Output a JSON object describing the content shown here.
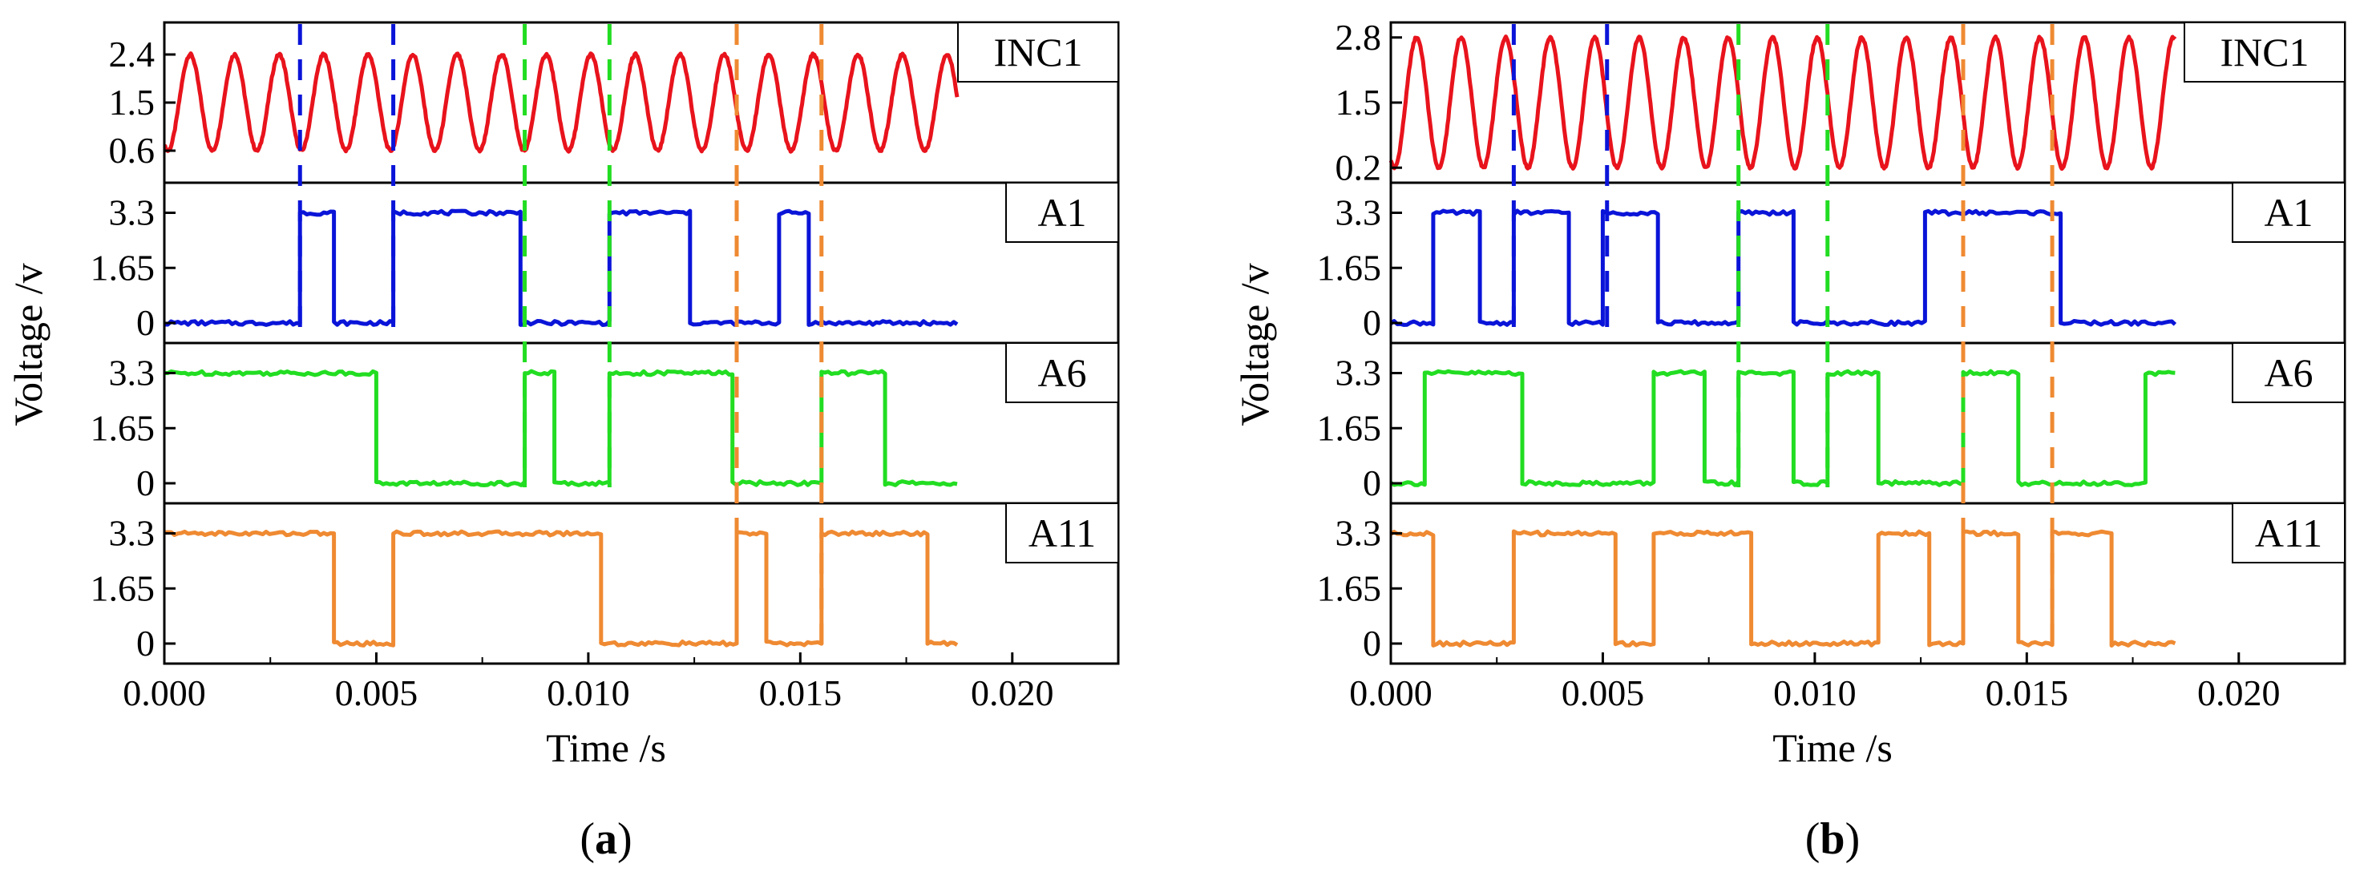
{
  "figure": {
    "xlabel": "Time /s",
    "ylabel": "Voltage /v",
    "xlim": [
      0,
      0.0225
    ],
    "xticks": [
      "0.000",
      "0.005",
      "0.010",
      "0.015",
      "0.020"
    ],
    "colors": {
      "INC1": "#e8131c",
      "A1": "#0a14d8",
      "A6": "#22dd22",
      "A11": "#ef8a32"
    }
  },
  "chart_data": [
    {
      "type": "line",
      "title": "(a)",
      "caption": "a",
      "xlabel": "Time /s",
      "ylabel": "Voltage /v",
      "xlim": [
        0,
        0.0225
      ],
      "x_tick_labels": [
        "0.000",
        "0.005",
        "0.010",
        "0.015",
        "0.020"
      ],
      "panels": [
        {
          "name": "INC1",
          "kind": "sine",
          "color": "#e8131c",
          "ylim": [
            0.0,
            3.0
          ],
          "y_tick_labels": [
            "2.4",
            "1.5",
            "0.6"
          ],
          "y_tick_values": [
            2.4,
            1.5,
            0.6
          ],
          "min": 0.6,
          "max": 2.4,
          "period": 0.00105,
          "t_start": 0.0,
          "t_end": 0.0187
        },
        {
          "name": "A1",
          "kind": "square",
          "color": "#0a14d8",
          "ylim": [
            -0.6,
            4.2
          ],
          "y_tick_labels": [
            "3.3",
            "1.65",
            "0"
          ],
          "y_tick_values": [
            3.3,
            1.65,
            0
          ],
          "t_start": 0.0,
          "t_end": 0.0187,
          "initial": 0,
          "transitions": [
            0.0032,
            0.004,
            0.0054,
            0.0084,
            0.0105,
            0.0124,
            0.0145,
            0.0152
          ]
        },
        {
          "name": "A6",
          "kind": "square",
          "color": "#22dd22",
          "ylim": [
            -0.6,
            4.2
          ],
          "y_tick_labels": [
            "3.3",
            "1.65",
            "0"
          ],
          "y_tick_values": [
            3.3,
            1.65,
            0
          ],
          "t_start": 0.0,
          "t_end": 0.0187,
          "initial": 1,
          "transitions": [
            0.005,
            0.0085,
            0.0092,
            0.0105,
            0.0134,
            0.0155,
            0.017
          ]
        },
        {
          "name": "A11",
          "kind": "square",
          "color": "#ef8a32",
          "ylim": [
            -0.6,
            4.2
          ],
          "y_tick_labels": [
            "3.3",
            "1.65",
            "0"
          ],
          "y_tick_values": [
            3.3,
            1.65,
            0
          ],
          "t_start": 0.0,
          "t_end": 0.0187,
          "initial": 1,
          "transitions": [
            0.004,
            0.0054,
            0.0103,
            0.0135,
            0.0142,
            0.0155,
            0.018
          ]
        }
      ],
      "markers": [
        {
          "t": 0.0032,
          "color": "#0a14d8",
          "from": "INC1",
          "to": "A1"
        },
        {
          "t": 0.0054,
          "color": "#0a14d8",
          "from": "INC1",
          "to": "A1"
        },
        {
          "t": 0.0085,
          "color": "#22dd22",
          "from": "INC1",
          "to": "A6"
        },
        {
          "t": 0.0105,
          "color": "#22dd22",
          "from": "INC1",
          "to": "A6"
        },
        {
          "t": 0.0135,
          "color": "#ef8a32",
          "from": "INC1",
          "to": "A11"
        },
        {
          "t": 0.0155,
          "color": "#ef8a32",
          "from": "INC1",
          "to": "A11"
        }
      ]
    },
    {
      "type": "line",
      "title": "(b)",
      "caption": "b",
      "xlabel": "Time /s",
      "ylabel": "Voltage /v",
      "xlim": [
        0,
        0.0225
      ],
      "x_tick_labels": [
        "0.000",
        "0.005",
        "0.010",
        "0.015",
        "0.020"
      ],
      "panels": [
        {
          "name": "INC1",
          "kind": "sine",
          "color": "#e8131c",
          "ylim": [
            -0.1,
            3.1
          ],
          "y_tick_labels": [
            "2.8",
            "1.5",
            "0.2"
          ],
          "y_tick_values": [
            2.8,
            1.5,
            0.2
          ],
          "min": 0.2,
          "max": 2.8,
          "period": 0.00105,
          "t_start": 0.0,
          "t_end": 0.0185
        },
        {
          "name": "A1",
          "kind": "square",
          "color": "#0a14d8",
          "ylim": [
            -0.6,
            4.2
          ],
          "y_tick_labels": [
            "3.3",
            "1.65",
            "0"
          ],
          "y_tick_values": [
            3.3,
            1.65,
            0
          ],
          "t_start": 0.0,
          "t_end": 0.0185,
          "initial": 0,
          "transitions": [
            0.001,
            0.0021,
            0.0029,
            0.0042,
            0.005,
            0.0063,
            0.0082,
            0.0095,
            0.0126,
            0.0158
          ]
        },
        {
          "name": "A6",
          "kind": "square",
          "color": "#22dd22",
          "ylim": [
            -0.6,
            4.2
          ],
          "y_tick_labels": [
            "3.3",
            "1.65",
            "0"
          ],
          "y_tick_values": [
            3.3,
            1.65,
            0
          ],
          "t_start": 0.0,
          "t_end": 0.0185,
          "initial": 0,
          "transitions": [
            0.0008,
            0.0031,
            0.0062,
            0.0074,
            0.0082,
            0.0095,
            0.0103,
            0.0115,
            0.0135,
            0.0148,
            0.0178
          ]
        },
        {
          "name": "A11",
          "kind": "square",
          "color": "#ef8a32",
          "ylim": [
            -0.6,
            4.2
          ],
          "y_tick_labels": [
            "3.3",
            "1.65",
            "0"
          ],
          "y_tick_values": [
            3.3,
            1.65,
            0
          ],
          "t_start": 0.0,
          "t_end": 0.0185,
          "initial": 1,
          "transitions": [
            0.001,
            0.0029,
            0.0053,
            0.0062,
            0.0085,
            0.0115,
            0.0127,
            0.0135,
            0.0148,
            0.0156,
            0.017
          ]
        }
      ],
      "markers": [
        {
          "t": 0.0029,
          "color": "#0a14d8",
          "from": "INC1",
          "to": "A1"
        },
        {
          "t": 0.0051,
          "color": "#0a14d8",
          "from": "INC1",
          "to": "A1"
        },
        {
          "t": 0.0082,
          "color": "#22dd22",
          "from": "INC1",
          "to": "A6"
        },
        {
          "t": 0.0103,
          "color": "#22dd22",
          "from": "INC1",
          "to": "A6"
        },
        {
          "t": 0.0135,
          "color": "#ef8a32",
          "from": "INC1",
          "to": "A11"
        },
        {
          "t": 0.0156,
          "color": "#ef8a32",
          "from": "INC1",
          "to": "A11"
        }
      ]
    }
  ]
}
